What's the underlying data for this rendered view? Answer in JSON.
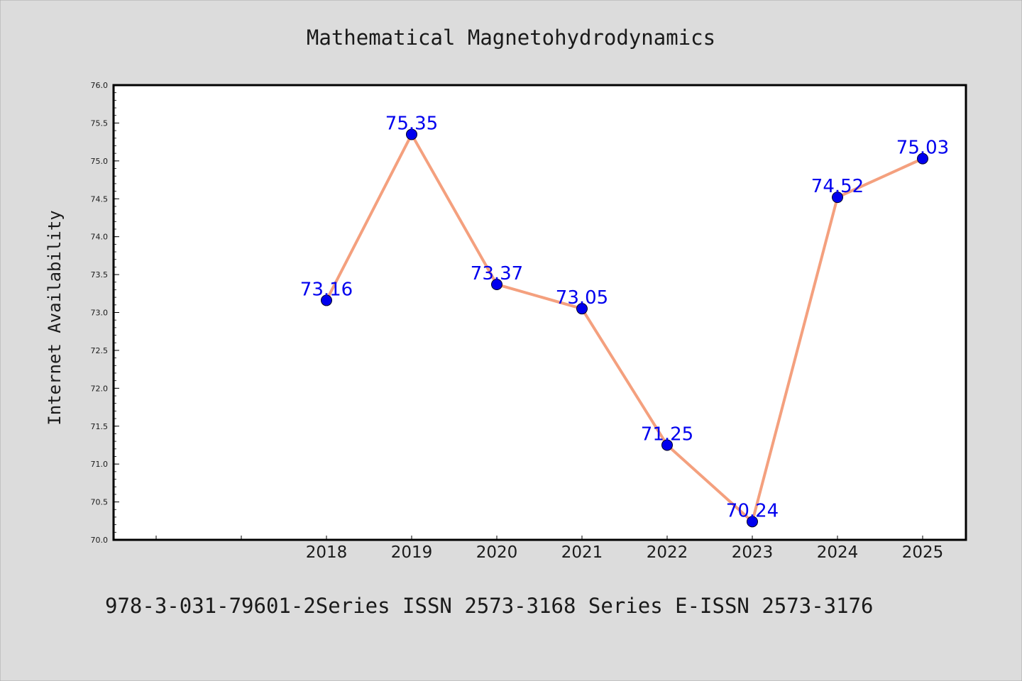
{
  "chart_data": {
    "type": "line",
    "title": "Mathematical Magnetohydrodynamics",
    "xlabel": "",
    "ylabel": "Internet Availability",
    "footer": "978-3-031-79601-2Series ISSN 2573-3168 Series E-ISSN 2573-3176",
    "x": [
      "2018",
      "2019",
      "2020",
      "2021",
      "2022",
      "2023",
      "2024",
      "2025"
    ],
    "series": [
      {
        "values": [
          73.16,
          75.35,
          73.37,
          73.05,
          71.25,
          70.24,
          74.52,
          75.03
        ]
      }
    ],
    "data_labels": [
      "73.16",
      "75.35",
      "73.37",
      "73.05",
      "71.25",
      "70.24",
      "74.52",
      "75.03"
    ],
    "ylim": [
      70.0,
      76.0
    ],
    "yticks": [
      "70.0",
      "70.5",
      "71.0",
      "71.5",
      "72.0",
      "72.5",
      "73.0",
      "73.5",
      "74.0",
      "74.5",
      "75.0",
      "75.5",
      "76.0"
    ],
    "grid": false,
    "colors": {
      "background": "#dcdcdc",
      "plot_background": "#ffffff",
      "line": "#f4a07e",
      "marker": "#0000ee",
      "data_label": "#0000ee",
      "text": "#1a1a1a"
    }
  }
}
